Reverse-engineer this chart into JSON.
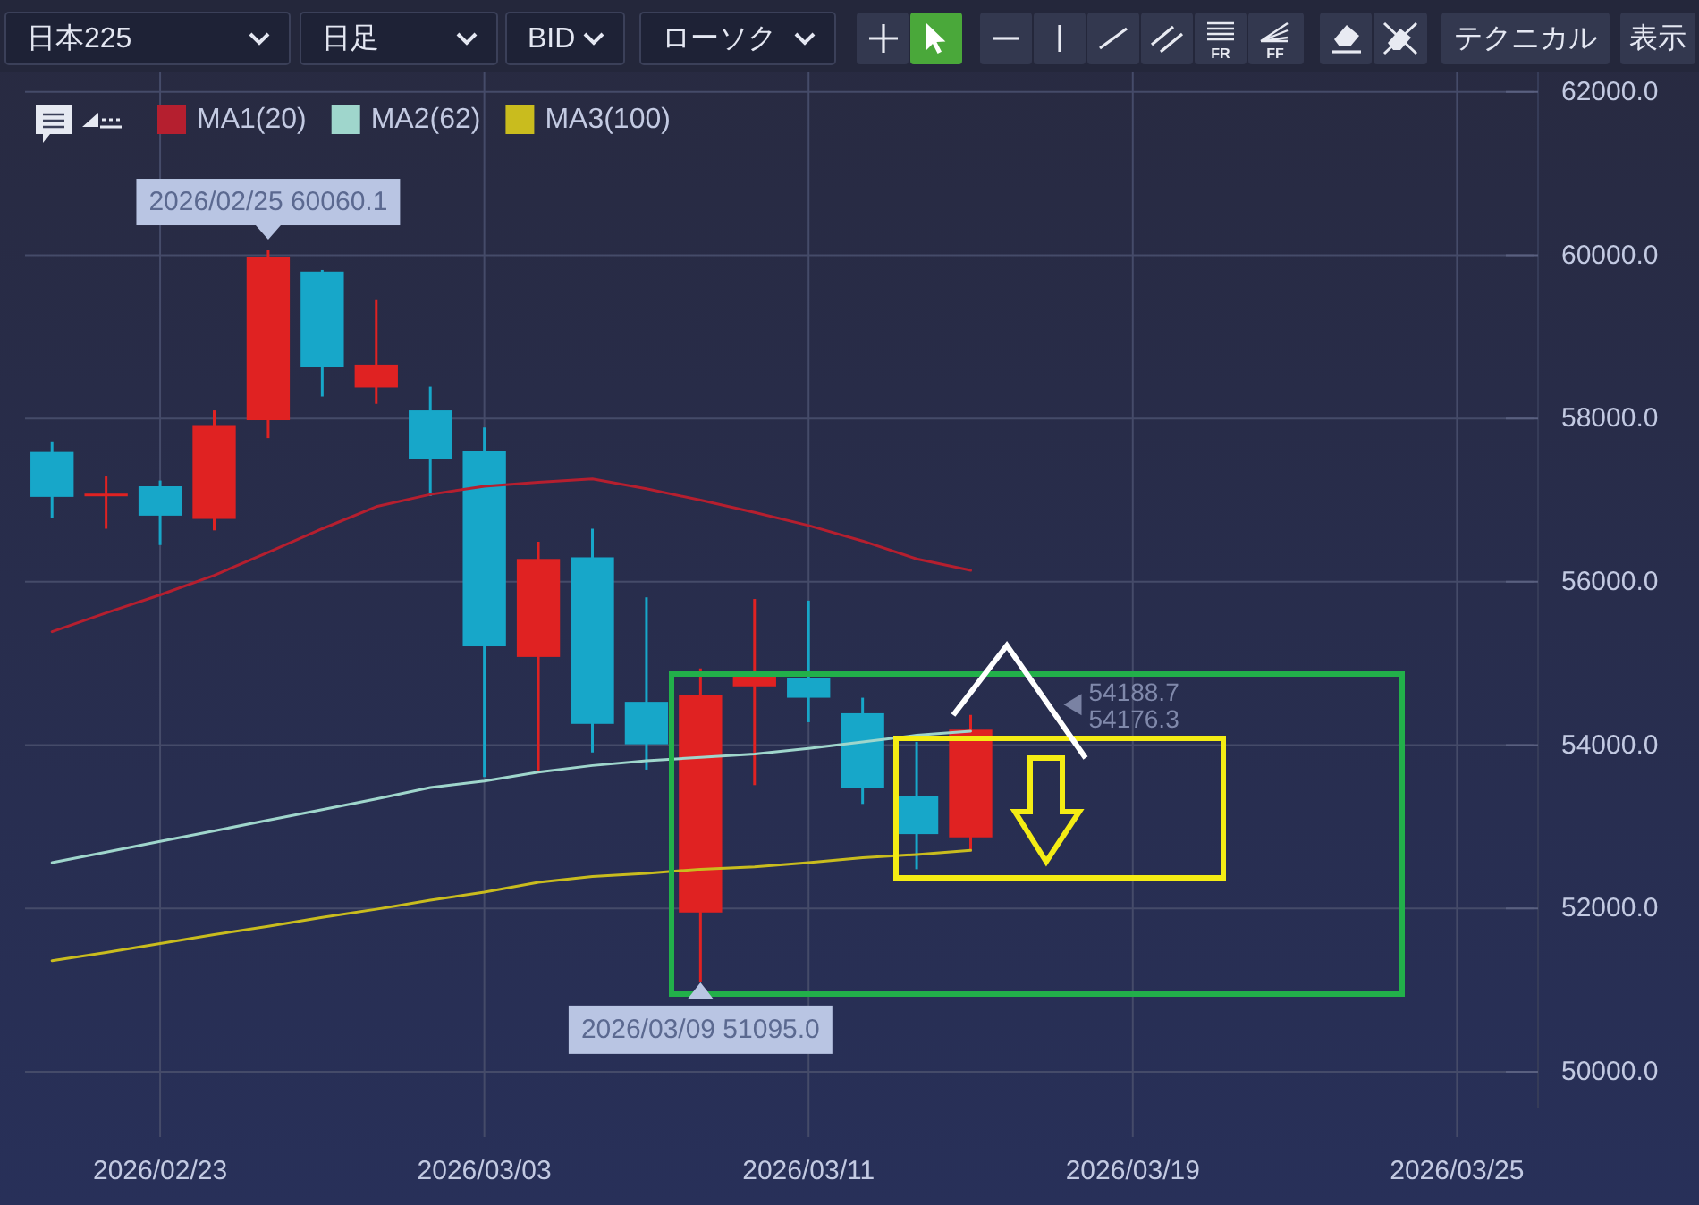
{
  "chart_data": {
    "type": "candlestick",
    "title": "日本225",
    "categories": [
      null,
      null,
      "2026/02/23",
      null,
      null,
      null,
      null,
      null,
      "2026/03/03",
      null,
      null,
      null,
      null,
      null,
      "2026/03/11",
      null,
      null,
      null,
      null,
      null,
      "2026/03/19",
      null,
      null,
      null,
      null,
      null,
      "2026/03/25",
      null
    ],
    "ohlc": [
      [
        57590,
        57720,
        56780,
        57040
      ],
      [
        57050,
        57290,
        56650,
        57080
      ],
      [
        57170,
        57240,
        56450,
        56810
      ],
      [
        56770,
        58100,
        56630,
        57920
      ],
      [
        57980,
        60060.1,
        57760,
        59980
      ],
      [
        59800,
        59820,
        58270,
        58630
      ],
      [
        58380,
        59450,
        58180,
        58660
      ],
      [
        58100,
        58390,
        57050,
        57500
      ],
      [
        57600,
        57890,
        53610,
        55210
      ],
      [
        55080,
        56490,
        53670,
        56280
      ],
      [
        56300,
        56650,
        53910,
        54260
      ],
      [
        54530,
        55810,
        53700,
        54010
      ],
      [
        51950,
        54940,
        51095.0,
        54610
      ],
      [
        54720,
        55790,
        53510,
        54850
      ],
      [
        54820,
        55770,
        54280,
        54580
      ],
      [
        54390,
        54580,
        53280,
        53480
      ],
      [
        53380,
        54040,
        52480,
        52910
      ],
      [
        52870,
        54370,
        52700,
        54188.7
      ],
      null,
      null,
      null,
      null,
      null,
      null,
      null,
      null,
      null,
      null
    ],
    "colors": [
      "#17a7c9",
      "#e02222",
      "#17a7c9",
      "#e02222",
      "#e02222",
      "#17a7c9",
      "#e02222",
      "#17a7c9",
      "#17a7c9",
      "#e02222",
      "#17a7c9",
      "#17a7c9",
      "#e02222",
      "#e02222",
      "#17a7c9",
      "#17a7c9",
      "#17a7c9",
      "#e02222",
      null,
      null,
      null,
      null,
      null,
      null,
      null,
      null,
      null,
      null
    ],
    "series": [
      {
        "type": "line",
        "name": "MA1(20)",
        "color": "#b51f2f",
        "values": [
          55390,
          55620,
          55840,
          56080,
          56360,
          56650,
          56920,
          57070,
          57170,
          57220,
          57260,
          57140,
          57000,
          56850,
          56690,
          56500,
          56280,
          56140,
          null,
          null,
          null,
          null,
          null,
          null,
          null,
          null,
          null,
          null
        ]
      },
      {
        "type": "line",
        "name": "MA2(62)",
        "color": "#9fd6cc",
        "values": [
          52560,
          52690,
          52820,
          52950,
          53080,
          53210,
          53340,
          53480,
          53560,
          53670,
          53750,
          53810,
          53850,
          53890,
          53960,
          54040,
          54120,
          54170,
          null,
          null,
          null,
          null,
          null,
          null,
          null,
          null,
          null,
          null
        ]
      },
      {
        "type": "line",
        "name": "MA3(100)",
        "color": "#c9bc1e",
        "values": [
          51360,
          51460,
          51570,
          51680,
          51780,
          51890,
          51990,
          52100,
          52200,
          52320,
          52390,
          52430,
          52480,
          52510,
          52560,
          52620,
          52660,
          52710,
          null,
          null,
          null,
          null,
          null,
          null,
          null,
          null,
          null,
          null
        ]
      }
    ],
    "ylim": [
      49550,
      62250
    ],
    "yticks": [
      {
        "value": 50000,
        "label": "50000.0"
      },
      {
        "value": 52000,
        "label": "52000.0"
      },
      {
        "value": 54000,
        "label": "54000.0"
      },
      {
        "value": 56000,
        "label": "56000.0"
      },
      {
        "value": 58000,
        "label": "58000.0"
      },
      {
        "value": 60000,
        "label": "60000.0"
      },
      {
        "value": 62000,
        "label": "62000.0"
      }
    ],
    "grid": true,
    "legend": "top left",
    "annotations": [
      "日足",
      "BID",
      "ローソク",
      "FR",
      "FF",
      "テクニカル",
      "表示",
      "54188.7",
      "54176.3",
      {
        "text": "2026/02/25 60060.1",
        "y": 60060.1
      },
      {
        "text": "2026/03/09 51095.0",
        "y": 51095.0
      }
    ]
  }
}
